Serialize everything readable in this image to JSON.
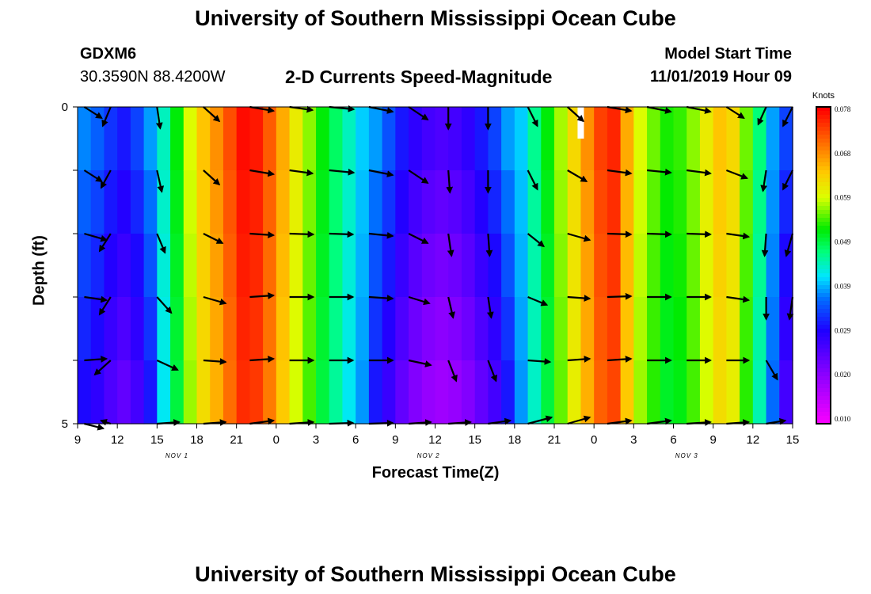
{
  "page": {
    "title_top": "University of Southern Mississippi Ocean Cube",
    "title_bottom": "University of Southern Mississippi Ocean Cube"
  },
  "header": {
    "station_id": "GDXM6",
    "station_coords": "30.3590N 88.4200W",
    "subtitle": "2-D Currents Speed-Magnitude",
    "model_start_label": "Model Start Time",
    "model_start_value": "11/01/2019 Hour 09"
  },
  "chart_data": {
    "type": "heatmap",
    "title": "2-D Currents Speed-Magnitude",
    "xlabel": "Forecast Time(Z)",
    "ylabel": "Depth (ft)",
    "colorbar_unit": "Knots",
    "colorbar_ticks": [
      "0.078",
      "0.068",
      "0.059",
      "0.049",
      "0.039",
      "0.029",
      "0.020",
      "0.010"
    ],
    "color_range": [
      0.005,
      0.08
    ],
    "xlim": [
      9,
      63
    ],
    "ylim": [
      0,
      5
    ],
    "x_tick_values": [
      9,
      12,
      15,
      18,
      21,
      24,
      27,
      30,
      33,
      36,
      39,
      42,
      45,
      48,
      51,
      54,
      57,
      60,
      63
    ],
    "x_tick_labels": [
      "9",
      "12",
      "15",
      "18",
      "21",
      "0",
      "3",
      "6",
      "9",
      "12",
      "15",
      "18",
      "21",
      "0",
      "3",
      "6",
      "9",
      "12",
      "15"
    ],
    "y_ticks": [
      "0",
      "5"
    ],
    "y_tick_marks": [
      0,
      1,
      2,
      3,
      4,
      5
    ],
    "day_labels": [
      {
        "x": 16.5,
        "label": "NOV 1"
      },
      {
        "x": 35.5,
        "label": "NOV 2"
      },
      {
        "x": 55.0,
        "label": "NOV 3"
      }
    ],
    "speed_by_hour": [
      0.032,
      0.03,
      0.027,
      0.025,
      0.028,
      0.033,
      0.042,
      0.05,
      0.058,
      0.064,
      0.068,
      0.073,
      0.078,
      0.077,
      0.072,
      0.066,
      0.06,
      0.055,
      0.05,
      0.046,
      0.042,
      0.038,
      0.033,
      0.029,
      0.025,
      0.022,
      0.02,
      0.019,
      0.02,
      0.022,
      0.025,
      0.028,
      0.033,
      0.038,
      0.044,
      0.05,
      0.056,
      0.062,
      0.068,
      0.074,
      0.076,
      0.066,
      0.058,
      0.054,
      0.051,
      0.052,
      0.055,
      0.06,
      0.064,
      0.062,
      0.054,
      0.045,
      0.036,
      0.028,
      0.022,
      0.021
    ],
    "depth_adjust": [
      0.004,
      0.002,
      0.0,
      -0.002,
      -0.004
    ],
    "missing_cells": [
      {
        "x": 47,
        "depth": 0
      }
    ],
    "vectors": [
      {
        "x": 9.5,
        "d": 0,
        "dx": 22,
        "dy": 14
      },
      {
        "x": 11.5,
        "d": 0,
        "dx": -10,
        "dy": 24
      },
      {
        "x": 15.0,
        "d": 0,
        "dx": 4,
        "dy": 27
      },
      {
        "x": 18.5,
        "d": 0,
        "dx": 20,
        "dy": 18
      },
      {
        "x": 22.0,
        "d": 0,
        "dx": 30,
        "dy": 5
      },
      {
        "x": 25.0,
        "d": 0,
        "dx": 29,
        "dy": 4
      },
      {
        "x": 28.0,
        "d": 0,
        "dx": 31,
        "dy": 3
      },
      {
        "x": 31.0,
        "d": 0,
        "dx": 30,
        "dy": 6
      },
      {
        "x": 34.0,
        "d": 0,
        "dx": 24,
        "dy": 16
      },
      {
        "x": 37.0,
        "d": 0,
        "dx": 0,
        "dy": 28
      },
      {
        "x": 40.0,
        "d": 0,
        "dx": 0,
        "dy": 28
      },
      {
        "x": 43.0,
        "d": 0,
        "dx": 12,
        "dy": 24
      },
      {
        "x": 46.0,
        "d": 0,
        "dx": 20,
        "dy": 18
      },
      {
        "x": 49.0,
        "d": 0,
        "dx": 30,
        "dy": 5
      },
      {
        "x": 52.0,
        "d": 0,
        "dx": 30,
        "dy": 6
      },
      {
        "x": 55.0,
        "d": 0,
        "dx": 30,
        "dy": 6
      },
      {
        "x": 58.0,
        "d": 0,
        "dx": 22,
        "dy": 14
      },
      {
        "x": 61.0,
        "d": 0,
        "dx": -10,
        "dy": 22
      },
      {
        "x": 63.0,
        "d": 0,
        "dx": -12,
        "dy": 24
      },
      {
        "x": 9.5,
        "d": 1,
        "dx": 22,
        "dy": 14
      },
      {
        "x": 11.5,
        "d": 1,
        "dx": -12,
        "dy": 22
      },
      {
        "x": 15.0,
        "d": 1,
        "dx": 6,
        "dy": 27
      },
      {
        "x": 18.5,
        "d": 1,
        "dx": 20,
        "dy": 18
      },
      {
        "x": 22.0,
        "d": 1,
        "dx": 30,
        "dy": 5
      },
      {
        "x": 25.0,
        "d": 1,
        "dx": 29,
        "dy": 4
      },
      {
        "x": 28.0,
        "d": 1,
        "dx": 31,
        "dy": 3
      },
      {
        "x": 31.0,
        "d": 1,
        "dx": 30,
        "dy": 6
      },
      {
        "x": 34.0,
        "d": 1,
        "dx": 24,
        "dy": 16
      },
      {
        "x": 37.0,
        "d": 1,
        "dx": 2,
        "dy": 28
      },
      {
        "x": 40.0,
        "d": 1,
        "dx": 0,
        "dy": 28
      },
      {
        "x": 43.0,
        "d": 1,
        "dx": 12,
        "dy": 24
      },
      {
        "x": 46.0,
        "d": 1,
        "dx": 24,
        "dy": 14
      },
      {
        "x": 49.0,
        "d": 1,
        "dx": 30,
        "dy": 4
      },
      {
        "x": 52.0,
        "d": 1,
        "dx": 30,
        "dy": 3
      },
      {
        "x": 55.0,
        "d": 1,
        "dx": 30,
        "dy": 4
      },
      {
        "x": 58.0,
        "d": 1,
        "dx": 26,
        "dy": 10
      },
      {
        "x": 61.0,
        "d": 1,
        "dx": -4,
        "dy": 26
      },
      {
        "x": 63.0,
        "d": 1,
        "dx": -12,
        "dy": 24
      },
      {
        "x": 9.5,
        "d": 2,
        "dx": 28,
        "dy": 8
      },
      {
        "x": 11.5,
        "d": 2,
        "dx": -14,
        "dy": 22
      },
      {
        "x": 15.0,
        "d": 2,
        "dx": 10,
        "dy": 24
      },
      {
        "x": 18.5,
        "d": 2,
        "dx": 24,
        "dy": 12
      },
      {
        "x": 22.0,
        "d": 2,
        "dx": 30,
        "dy": 2
      },
      {
        "x": 25.0,
        "d": 2,
        "dx": 30,
        "dy": 1
      },
      {
        "x": 28.0,
        "d": 2,
        "dx": 30,
        "dy": 1
      },
      {
        "x": 31.0,
        "d": 2,
        "dx": 30,
        "dy": 3
      },
      {
        "x": 34.0,
        "d": 2,
        "dx": 24,
        "dy": 12
      },
      {
        "x": 37.0,
        "d": 2,
        "dx": 4,
        "dy": 28
      },
      {
        "x": 40.0,
        "d": 2,
        "dx": 2,
        "dy": 28
      },
      {
        "x": 43.0,
        "d": 2,
        "dx": 20,
        "dy": 16
      },
      {
        "x": 46.0,
        "d": 2,
        "dx": 28,
        "dy": 8
      },
      {
        "x": 49.0,
        "d": 2,
        "dx": 30,
        "dy": 1
      },
      {
        "x": 52.0,
        "d": 2,
        "dx": 30,
        "dy": 1
      },
      {
        "x": 55.0,
        "d": 2,
        "dx": 30,
        "dy": 1
      },
      {
        "x": 58.0,
        "d": 2,
        "dx": 28,
        "dy": 4
      },
      {
        "x": 61.0,
        "d": 2,
        "dx": -2,
        "dy": 28
      },
      {
        "x": 63.0,
        "d": 2,
        "dx": -8,
        "dy": 28
      },
      {
        "x": 9.5,
        "d": 3,
        "dx": 28,
        "dy": 4
      },
      {
        "x": 11.5,
        "d": 3,
        "dx": -14,
        "dy": 22
      },
      {
        "x": 15.0,
        "d": 3,
        "dx": 18,
        "dy": 20
      },
      {
        "x": 18.5,
        "d": 3,
        "dx": 28,
        "dy": 8
      },
      {
        "x": 22.0,
        "d": 3,
        "dx": 30,
        "dy": -2
      },
      {
        "x": 25.0,
        "d": 3,
        "dx": 30,
        "dy": 0
      },
      {
        "x": 28.0,
        "d": 3,
        "dx": 30,
        "dy": 0
      },
      {
        "x": 31.0,
        "d": 3,
        "dx": 30,
        "dy": 2
      },
      {
        "x": 34.0,
        "d": 3,
        "dx": 26,
        "dy": 8
      },
      {
        "x": 37.0,
        "d": 3,
        "dx": 6,
        "dy": 26
      },
      {
        "x": 40.0,
        "d": 3,
        "dx": 4,
        "dy": 26
      },
      {
        "x": 43.0,
        "d": 3,
        "dx": 24,
        "dy": 10
      },
      {
        "x": 46.0,
        "d": 3,
        "dx": 28,
        "dy": 2
      },
      {
        "x": 49.0,
        "d": 3,
        "dx": 30,
        "dy": -1
      },
      {
        "x": 52.0,
        "d": 3,
        "dx": 30,
        "dy": 0
      },
      {
        "x": 55.0,
        "d": 3,
        "dx": 30,
        "dy": 0
      },
      {
        "x": 58.0,
        "d": 3,
        "dx": 28,
        "dy": 4
      },
      {
        "x": 61.0,
        "d": 3,
        "dx": 0,
        "dy": 28
      },
      {
        "x": 63.0,
        "d": 3,
        "dx": -4,
        "dy": 28
      },
      {
        "x": 9.5,
        "d": 4,
        "dx": 28,
        "dy": -2
      },
      {
        "x": 11.5,
        "d": 4,
        "dx": -20,
        "dy": 18
      },
      {
        "x": 15.0,
        "d": 4,
        "dx": 26,
        "dy": 12
      },
      {
        "x": 18.5,
        "d": 4,
        "dx": 28,
        "dy": 2
      },
      {
        "x": 22.0,
        "d": 4,
        "dx": 30,
        "dy": -2
      },
      {
        "x": 25.0,
        "d": 4,
        "dx": 30,
        "dy": 0
      },
      {
        "x": 28.0,
        "d": 4,
        "dx": 30,
        "dy": 0
      },
      {
        "x": 31.0,
        "d": 4,
        "dx": 30,
        "dy": 0
      },
      {
        "x": 34.0,
        "d": 4,
        "dx": 28,
        "dy": 6
      },
      {
        "x": 37.0,
        "d": 4,
        "dx": 10,
        "dy": 26
      },
      {
        "x": 40.0,
        "d": 4,
        "dx": 10,
        "dy": 26
      },
      {
        "x": 43.0,
        "d": 4,
        "dx": 28,
        "dy": 2
      },
      {
        "x": 46.0,
        "d": 4,
        "dx": 28,
        "dy": -2
      },
      {
        "x": 49.0,
        "d": 4,
        "dx": 30,
        "dy": -2
      },
      {
        "x": 52.0,
        "d": 4,
        "dx": 30,
        "dy": 0
      },
      {
        "x": 55.0,
        "d": 4,
        "dx": 30,
        "dy": 0
      },
      {
        "x": 58.0,
        "d": 4,
        "dx": 28,
        "dy": 0
      },
      {
        "x": 61.0,
        "d": 4,
        "dx": 14,
        "dy": 24
      },
      {
        "x": 9.5,
        "d": 5,
        "dx": 24,
        "dy": 6
      },
      {
        "x": 11.5,
        "d": 5,
        "dx": -12,
        "dy": -4
      },
      {
        "x": 15.0,
        "d": 5,
        "dx": 28,
        "dy": -2
      },
      {
        "x": 18.5,
        "d": 5,
        "dx": 28,
        "dy": -2
      },
      {
        "x": 22.0,
        "d": 5,
        "dx": 30,
        "dy": -4
      },
      {
        "x": 25.0,
        "d": 5,
        "dx": 30,
        "dy": -2
      },
      {
        "x": 28.0,
        "d": 5,
        "dx": 30,
        "dy": -1
      },
      {
        "x": 31.0,
        "d": 5,
        "dx": 30,
        "dy": -1
      },
      {
        "x": 34.0,
        "d": 5,
        "dx": 28,
        "dy": -2
      },
      {
        "x": 37.0,
        "d": 5,
        "dx": 28,
        "dy": -2
      },
      {
        "x": 40.0,
        "d": 5,
        "dx": 28,
        "dy": -4
      },
      {
        "x": 43.0,
        "d": 5,
        "dx": 30,
        "dy": -8
      },
      {
        "x": 46.0,
        "d": 5,
        "dx": 28,
        "dy": -8
      },
      {
        "x": 49.0,
        "d": 5,
        "dx": 30,
        "dy": -4
      },
      {
        "x": 52.0,
        "d": 5,
        "dx": 30,
        "dy": -4
      },
      {
        "x": 55.0,
        "d": 5,
        "dx": 30,
        "dy": -2
      },
      {
        "x": 58.0,
        "d": 5,
        "dx": 28,
        "dy": -2
      },
      {
        "x": 61.0,
        "d": 5,
        "dx": 24,
        "dy": -4
      }
    ]
  }
}
